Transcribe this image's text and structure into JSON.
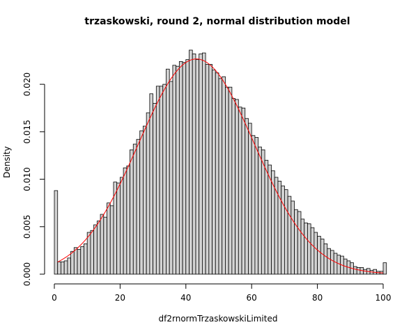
{
  "chart_data": {
    "type": "bar",
    "title": "trzaskowski, round 2, normal distribution model",
    "xlabel": "df2rnormTrzaskowskiLimited",
    "ylabel": "Density",
    "xlim": [
      0,
      100
    ],
    "ylim": [
      0,
      0.0236
    ],
    "xticks": [
      "0",
      "20",
      "40",
      "60",
      "80",
      "100"
    ],
    "yticks": [
      "0.000",
      "0.005",
      "0.010",
      "0.015",
      "0.020"
    ],
    "bin_width": 1,
    "bin_start": 0,
    "values": [
      0.0088,
      0.0013,
      0.0013,
      0.0014,
      0.0017,
      0.0024,
      0.0028,
      0.0026,
      0.0029,
      0.0032,
      0.0044,
      0.0046,
      0.0052,
      0.0056,
      0.0063,
      0.006,
      0.0075,
      0.0072,
      0.0097,
      0.0096,
      0.0102,
      0.0112,
      0.0114,
      0.0131,
      0.0137,
      0.0142,
      0.0151,
      0.0156,
      0.017,
      0.019,
      0.018,
      0.0198,
      0.0198,
      0.02,
      0.0216,
      0.0203,
      0.022,
      0.0219,
      0.0224,
      0.0223,
      0.0226,
      0.0236,
      0.0232,
      0.0226,
      0.0232,
      0.0233,
      0.0221,
      0.0221,
      0.0215,
      0.0212,
      0.0206,
      0.0208,
      0.0197,
      0.0197,
      0.0185,
      0.0184,
      0.0176,
      0.0175,
      0.0164,
      0.0159,
      0.0146,
      0.0144,
      0.0134,
      0.0131,
      0.012,
      0.0115,
      0.0109,
      0.0102,
      0.0098,
      0.0093,
      0.0089,
      0.0082,
      0.0077,
      0.0068,
      0.0066,
      0.0058,
      0.0054,
      0.0053,
      0.0049,
      0.0044,
      0.004,
      0.0037,
      0.0032,
      0.0027,
      0.0025,
      0.0022,
      0.002,
      0.0019,
      0.0016,
      0.0014,
      0.0012,
      0.0008,
      0.0007,
      0.0007,
      0.0005,
      0.0006,
      0.0004,
      0.0005,
      0.0003,
      0.0003,
      0.0012
    ],
    "density_curve": {
      "type": "normal",
      "mean": 43.2,
      "sd": 17.6,
      "x_from": 1,
      "x_to": 100,
      "color": "#ff0000"
    },
    "bar_fill": "#d3d3d3",
    "grid": false,
    "legend": "none"
  }
}
